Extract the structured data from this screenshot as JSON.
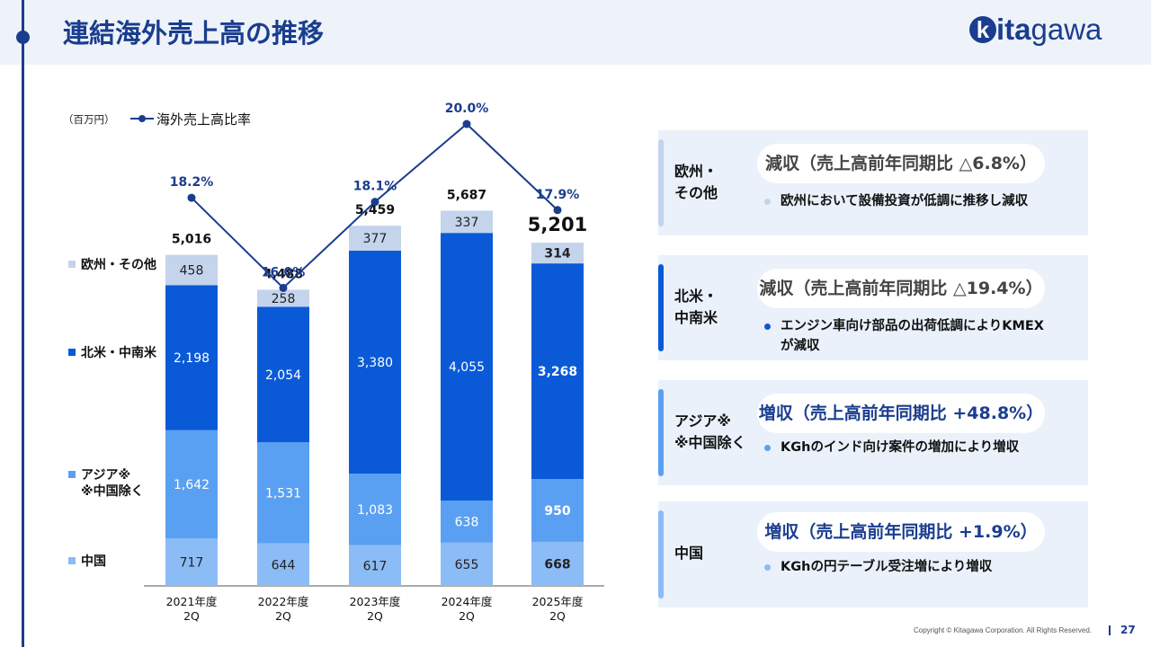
{
  "page": {
    "title": "連結海外売上高の推移",
    "logo": {
      "mark": "k",
      "text_bold": "ita",
      "text_light": "gawa"
    },
    "footer": "Copyright © Kitagawa Corporation. All Rights Reserved.",
    "page_number": "27"
  },
  "chart_data": {
    "type": "bar",
    "stacked": true,
    "unit_label": "（百万円）",
    "categories": [
      "2021年度\n2Q",
      "2022年度\n2Q",
      "2023年度\n2Q",
      "2024年度\n2Q",
      "2025年度\n2Q"
    ],
    "series": [
      {
        "name": "中国",
        "values": [
          717,
          644,
          617,
          655,
          668
        ],
        "color": "#8cbcf5"
      },
      {
        "name": "アジア※\n※中国除く",
        "values": [
          1642,
          1531,
          1083,
          638,
          950
        ],
        "color": "#5aa0f2"
      },
      {
        "name": "北米・中南米",
        "values": [
          2198,
          2054,
          3380,
          4055,
          3268
        ],
        "color": "#0a5ad8"
      },
      {
        "name": "欧州・その他",
        "values": [
          458,
          258,
          377,
          337,
          314
        ],
        "color": "#c3d4ec"
      }
    ],
    "totals": [
      5016,
      4488,
      5459,
      5687,
      5201
    ],
    "line": {
      "name": "海外売上高比率",
      "values": [
        18.2,
        16.0,
        18.1,
        20.0,
        17.9
      ],
      "labels": [
        "18.2%",
        "16.0%",
        "18.1%",
        "20.0%",
        "17.9%"
      ],
      "color": "#1a3d8f"
    },
    "highlight_index": 4
  },
  "regions": [
    {
      "name": "欧州・\nその他",
      "summary": "減収（売上高前年同期比 △6.8%）",
      "note": "欧州において設備投資が低調に推移し減収",
      "color": "#c3d4ec",
      "status_color": "#444444"
    },
    {
      "name": "北米・\n中南米",
      "summary": "減収（売上高前年同期比 △19.4%）",
      "note": "エンジン車向け部品の出荷低調によりKMEX\nが減収",
      "color": "#0a5ad8",
      "status_color": "#444444"
    },
    {
      "name": "アジア※\n※中国除く",
      "summary": "増収（売上高前年同期比 +48.8%）",
      "note": "KGhのインド向け案件の増加により増収",
      "color": "#5aa0f2",
      "status_color": "#1a3d8f"
    },
    {
      "name": "中国",
      "summary": "増収（売上高前年同期比 +1.9%）",
      "note": "KGhの円テーブル受注増により増収",
      "color": "#8cbcf5",
      "status_color": "#1a3d8f"
    }
  ]
}
